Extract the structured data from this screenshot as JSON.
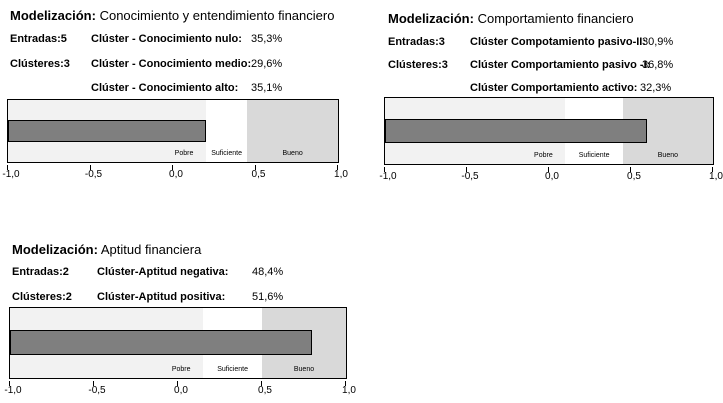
{
  "panels": [
    {
      "id": "conocimiento",
      "title_prefix": "Modelización:",
      "title_text": "Conocimiento y entendimiento financiero",
      "entradas": "Entradas:5",
      "clusteres": "Clústeres:3",
      "clusters": [
        {
          "name": "Clúster - Conocimiento nulo:",
          "value": "35,3%"
        },
        {
          "name": "Clúster - Conocimiento medio:",
          "value": "29,6%"
        },
        {
          "name": "Clúster - Conocimiento alto:",
          "value": "35,1%"
        }
      ],
      "chart_data": {
        "type": "bar",
        "orientation": "horizontal",
        "value": 0.2,
        "xlim": [
          -1.0,
          1.0
        ],
        "ticks": [
          "-1,0",
          "-0,5",
          "0,0",
          "0,5",
          "1,0"
        ],
        "tick_values": [
          -1.0,
          -0.5,
          0.0,
          0.5,
          1.0
        ],
        "bands": [
          {
            "label": "Pobre",
            "from": -1.0,
            "to": 0.2,
            "color": "#f2f2f2"
          },
          {
            "label": "Suficiente",
            "from": 0.2,
            "to": 0.45,
            "color": "#ffffff"
          },
          {
            "label": "Bueno",
            "from": 0.45,
            "to": 1.0,
            "color": "#d9d9d9"
          }
        ],
        "bar_color": "#7f7f7f"
      }
    },
    {
      "id": "comportamiento",
      "title_prefix": "Modelización:",
      "title_text": "Comportamiento financiero",
      "entradas": "Entradas:3",
      "clusteres": "Clústeres:3",
      "clusters": [
        {
          "name": "Clúster Compotamiento pasivo-II:",
          "value": "30,9%"
        },
        {
          "name": "Clúster Comportamiento pasivo -I:",
          "value": "36,8%"
        },
        {
          "name": "Clúster Comportamiento activo:",
          "value": "32,3%"
        }
      ],
      "chart_data": {
        "type": "bar",
        "orientation": "horizontal",
        "value": 0.6,
        "xlim": [
          -1.0,
          1.0
        ],
        "ticks": [
          "-1,0",
          "-0,5",
          "0,0",
          "0,5",
          "1,0"
        ],
        "tick_values": [
          -1.0,
          -0.5,
          0.0,
          0.5,
          1.0
        ],
        "bands": [
          {
            "label": "Pobre",
            "from": -1.0,
            "to": 0.1,
            "color": "#f2f2f2"
          },
          {
            "label": "Suficiente",
            "from": 0.1,
            "to": 0.45,
            "color": "#ffffff"
          },
          {
            "label": "Bueno",
            "from": 0.45,
            "to": 1.0,
            "color": "#d9d9d9"
          }
        ],
        "bar_color": "#7f7f7f"
      }
    },
    {
      "id": "aptitud",
      "title_prefix": "Modelización:",
      "title_text": "Aptitud financiera",
      "entradas": "Entradas:2",
      "clusteres": "Clústeres:2",
      "clusters": [
        {
          "name": "Clúster-Aptitud negativa:",
          "value": "48,4%"
        },
        {
          "name": "Clúster-Aptitud positiva:",
          "value": "51,6%"
        }
      ],
      "chart_data": {
        "type": "bar",
        "orientation": "horizontal",
        "value": 0.8,
        "xlim": [
          -1.0,
          1.0
        ],
        "ticks": [
          "-1,0",
          "-0,5",
          "0,0",
          "0,5",
          "1,0"
        ],
        "tick_values": [
          -1.0,
          -0.5,
          0.0,
          0.5,
          1.0
        ],
        "bands": [
          {
            "label": "Pobre",
            "from": -1.0,
            "to": 0.15,
            "color": "#f2f2f2"
          },
          {
            "label": "Suficiente",
            "from": 0.15,
            "to": 0.5,
            "color": "#ffffff"
          },
          {
            "label": "Bueno",
            "from": 0.5,
            "to": 1.0,
            "color": "#d9d9d9"
          }
        ],
        "bar_color": "#7f7f7f"
      }
    }
  ]
}
